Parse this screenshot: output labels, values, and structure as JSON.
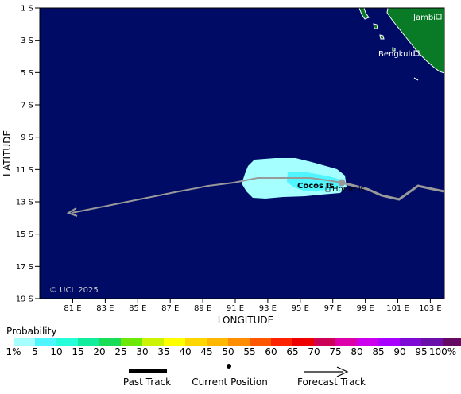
{
  "map": {
    "lat_ticks": [
      "1 S",
      "3 S",
      "5 S",
      "7 S",
      "9 S",
      "11 S",
      "13 S",
      "15 S",
      "17 S",
      "19 S"
    ],
    "lon_ticks": [
      "81 E",
      "83 E",
      "85 E",
      "87 E",
      "89 E",
      "91 E",
      "93 E",
      "95 E",
      "97 E",
      "99 E",
      "101 E",
      "103 E"
    ],
    "xlabel": "LONGITUDE",
    "ylabel": "LATITUDE",
    "copyright": "© UCL 2025",
    "places": [
      {
        "name": "Jambi"
      },
      {
        "name": "Bengkulu"
      },
      {
        "name": "Cocos Is"
      },
      {
        "name": "Home Is"
      }
    ],
    "colors": {
      "ocean": "#000b66",
      "land": "#097a25",
      "swath_light": "#a6ffff",
      "swath_mid": "#4ff5ff",
      "track": "#999999"
    }
  },
  "legend": {
    "title": "Probability",
    "labels": [
      "1%",
      "5",
      "10",
      "15",
      "20",
      "25",
      "30",
      "35",
      "40",
      "45",
      "50",
      "55",
      "60",
      "65",
      "70",
      "75",
      "80",
      "85",
      "90",
      "95",
      "100%"
    ],
    "colors": [
      "#a6ffff",
      "#4ff5ff",
      "#26ffd9",
      "#10ee9d",
      "#1add57",
      "#6ee808",
      "#ccf204",
      "#ffff00",
      "#ffd700",
      "#ffb700",
      "#ff8d00",
      "#ff5700",
      "#ff2200",
      "#ee0000",
      "#cc0055",
      "#dd00aa",
      "#cc00ee",
      "#aa00ff",
      "#7f0ad5",
      "#6a0faa",
      "#640a63"
    ],
    "keys": [
      {
        "label": "Past Track"
      },
      {
        "label": "Current Position"
      },
      {
        "label": "Forecast Track"
      }
    ]
  }
}
